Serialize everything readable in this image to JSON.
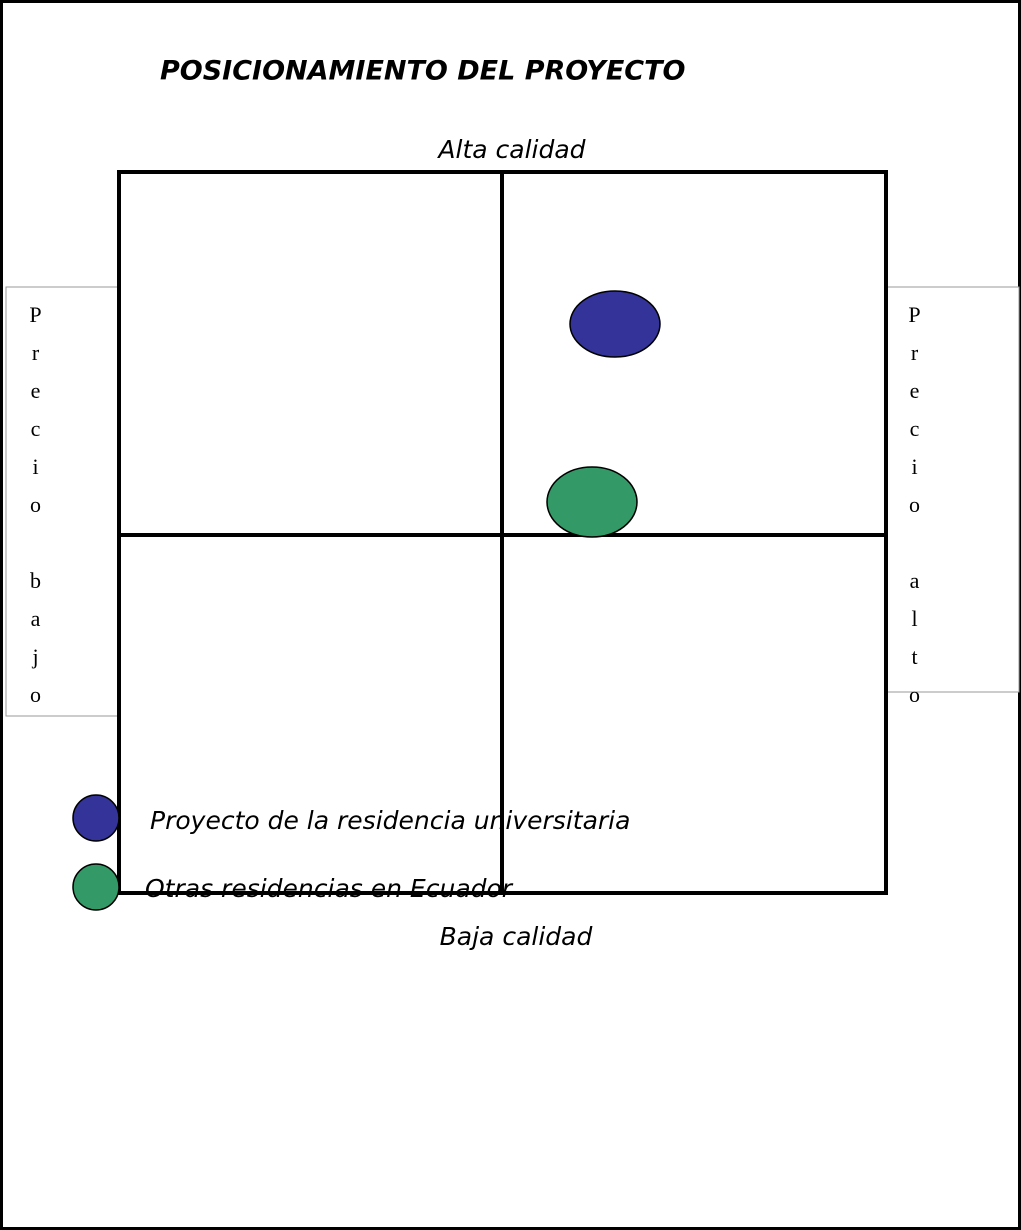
{
  "title": "POSICIONAMIENTO DEL PROYECTO",
  "axes": {
    "top": "Alta calidad",
    "bottom": "Baja calidad",
    "left": "Precio bajo",
    "right": "Precio alto"
  },
  "legend": [
    {
      "label": "Proyecto de la residencia universitaria"
    },
    {
      "label": "Otras residencias en Ecuador"
    }
  ]
}
